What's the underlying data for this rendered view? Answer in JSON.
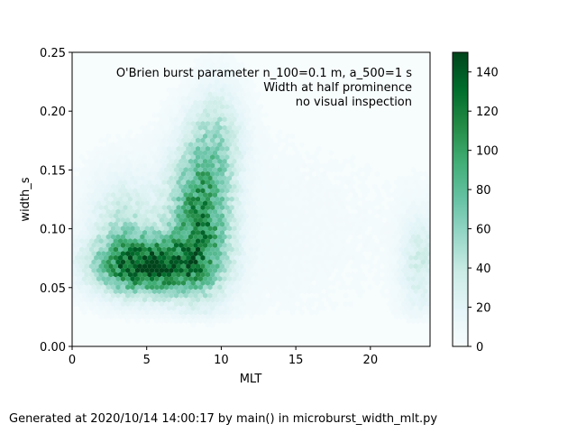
{
  "chart_data": {
    "type": "heatmap",
    "subtype": "hexbin",
    "title": "",
    "xlabel": "MLT",
    "ylabel": "width_s",
    "xlim": [
      0,
      24
    ],
    "ylim": [
      0,
      0.25
    ],
    "xticks": [
      0,
      5,
      10,
      15,
      20
    ],
    "yticks": [
      "0.00",
      "0.05",
      "0.10",
      "0.15",
      "0.20",
      "0.25"
    ],
    "annotations": [
      "O'Brien burst parameter n_100=0.1 m, a_500=1 s",
      "Width at half prominence",
      "no visual inspection"
    ],
    "colorbar": {
      "colormap": "BuGn",
      "range": [
        0,
        150
      ],
      "ticks": [
        0,
        20,
        40,
        60,
        80,
        100,
        120,
        140
      ]
    },
    "density_regions": [
      {
        "mlt_center": 5.2,
        "width_center": 0.068,
        "mlt_spread": 2.4,
        "width_spread": 0.016,
        "peak_count": 135
      },
      {
        "mlt_center": 8.6,
        "width_center": 0.11,
        "mlt_spread": 1.4,
        "width_spread": 0.042,
        "peak_count": 105
      },
      {
        "mlt_center": 9.8,
        "width_center": 0.18,
        "mlt_spread": 1.2,
        "width_spread": 0.03,
        "peak_count": 35
      },
      {
        "mlt_center": 3.5,
        "width_center": 0.1,
        "mlt_spread": 1.6,
        "width_spread": 0.03,
        "peak_count": 40
      },
      {
        "mlt_center": 23.3,
        "width_center": 0.07,
        "mlt_spread": 0.9,
        "width_spread": 0.03,
        "peak_count": 32
      },
      {
        "mlt_center": 12,
        "width_center": 0.1,
        "mlt_spread": 9,
        "width_spread": 0.07,
        "peak_count": 5
      }
    ]
  },
  "footer": {
    "text": "Generated at 2020/10/14 14:00:17 by main() in microburst_width_mlt.py"
  }
}
